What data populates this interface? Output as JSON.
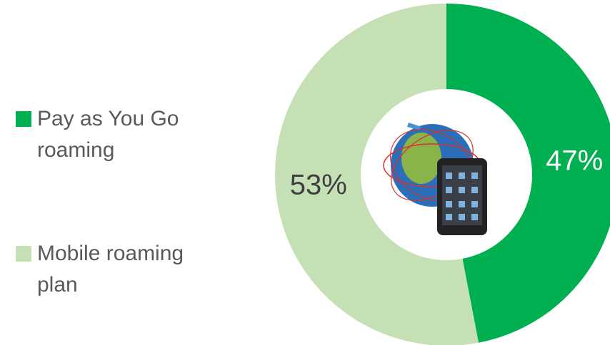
{
  "chart_data": {
    "type": "donut",
    "categories": [
      "Pay as You Go roaming",
      "Mobile roaming plan"
    ],
    "values": [
      47,
      53
    ],
    "value_labels": [
      "47%",
      "53%"
    ],
    "colors": [
      "#00b050",
      "#c5e0b4"
    ]
  }
}
